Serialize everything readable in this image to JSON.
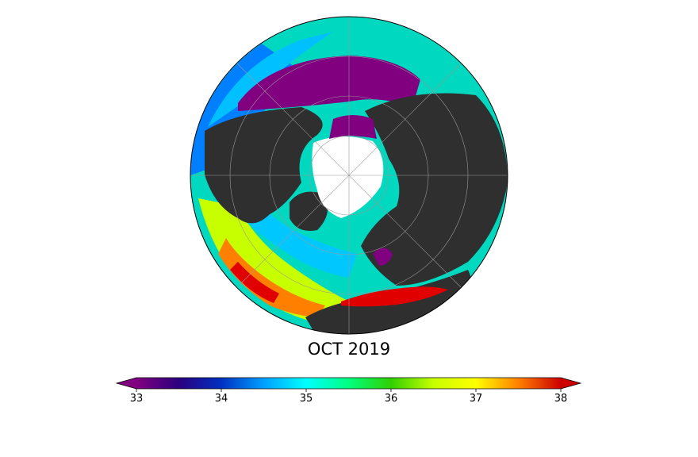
{
  "title": "OCT 2019",
  "colorbar": {
    "ticks": [
      "33",
      "34",
      "35",
      "36",
      "37",
      "38"
    ],
    "vmin": 33,
    "vmax": 38,
    "extend": "both",
    "colormap": "jet-like (purple-blue-cyan-green-yellow-red)"
  },
  "colors": {
    "land": "#2f2f2f",
    "sea_ice": "#ffffff",
    "low": "#800080",
    "high": "#cc0000"
  }
}
